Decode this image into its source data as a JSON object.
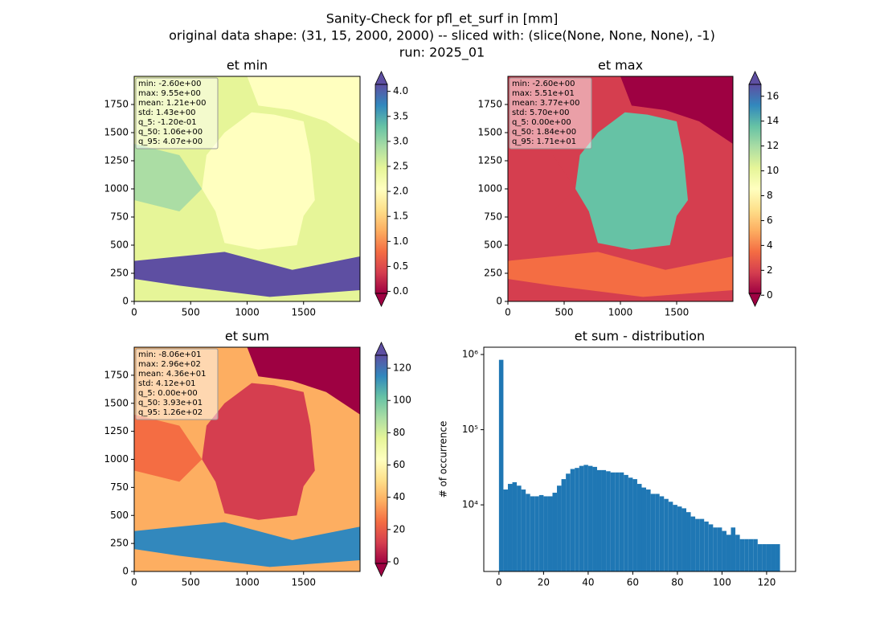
{
  "title_lines": [
    "Sanity-Check for pfl_et_surf in [mm]",
    "original data shape: (31, 15, 2000, 2000) -- sliced with: (slice(None, None, None), -1)",
    "run: 2025_01"
  ],
  "chart_data": [
    {
      "type": "heatmap",
      "title": "et min",
      "xlim": [
        0,
        2000
      ],
      "ylim": [
        0,
        2000
      ],
      "xticks": [
        0,
        500,
        1000,
        1500
      ],
      "yticks": [
        0,
        250,
        500,
        750,
        1000,
        1250,
        1500,
        1750
      ],
      "colormap": [
        "#9e0142",
        "#d53e4f",
        "#f46d43",
        "#fdae61",
        "#fee08b",
        "#ffffbf",
        "#e6f598",
        "#abdda4",
        "#66c2a5",
        "#3288bd",
        "#5e4fa2"
      ],
      "colorbar": {
        "clim": [
          -0.2,
          4.3
        ],
        "extend": "both",
        "ticks": [
          {
            "value": 0,
            "label": "0.0"
          },
          0.5,
          {
            "value": 1,
            "label": "1.0"
          },
          1.5,
          {
            "value": 2,
            "label": "2.0"
          },
          2.5,
          {
            "value": 3,
            "label": "3.0"
          },
          3.5,
          {
            "value": 4,
            "label": "4.0"
          }
        ]
      },
      "stats": [
        "min: -2.60e+00",
        "max: 9.55e+00",
        "mean: 1.21e+00",
        "std: 1.43e+00",
        "q_5: -1.20e-01",
        "q_50: 1.06e+00",
        "q_95: 4.07e+00"
      ]
    },
    {
      "type": "heatmap",
      "title": "et max",
      "xlim": [
        0,
        2000
      ],
      "ylim": [
        0,
        2000
      ],
      "xticks": [
        0,
        500,
        1000,
        1500
      ],
      "yticks": [
        0,
        250,
        500,
        750,
        1000,
        1250,
        1500,
        1750
      ],
      "colormap": [
        "#9e0142",
        "#d53e4f",
        "#f46d43",
        "#fdae61",
        "#fee08b",
        "#ffffbf",
        "#e6f598",
        "#abdda4",
        "#66c2a5",
        "#3288bd",
        "#5e4fa2"
      ],
      "colorbar": {
        "clim": [
          -0.5,
          17.6
        ],
        "extend": "both",
        "ticks": [
          0,
          2,
          4,
          6,
          8,
          10,
          12,
          14,
          16
        ]
      },
      "stats": [
        "min: -2.60e+00",
        "max: 5.51e+01",
        "mean: 3.77e+00",
        "std: 5.70e+00",
        "q_5: 0.00e+00",
        "q_50: 1.84e+00",
        "q_95: 1.71e+01"
      ]
    },
    {
      "type": "heatmap",
      "title": "et sum",
      "xlim": [
        0,
        2000
      ],
      "ylim": [
        0,
        2000
      ],
      "xticks": [
        0,
        500,
        1000,
        1500
      ],
      "yticks": [
        0,
        250,
        500,
        750,
        1000,
        1250,
        1500,
        1750
      ],
      "colormap": [
        "#9e0142",
        "#d53e4f",
        "#f46d43",
        "#fdae61",
        "#fee08b",
        "#ffffbf",
        "#e6f598",
        "#abdda4",
        "#66c2a5",
        "#3288bd",
        "#5e4fa2"
      ],
      "colorbar": {
        "clim": [
          -6,
          133
        ],
        "extend": "both",
        "ticks": [
          0,
          20,
          40,
          60,
          80,
          100,
          120
        ]
      },
      "stats": [
        "min: -8.06e+01",
        "max: 2.96e+02",
        "mean: 4.36e+01",
        "std: 4.12e+01",
        "q_5: 0.00e+00",
        "q_50: 3.93e+01",
        "q_95: 1.26e+02"
      ]
    },
    {
      "type": "histogram",
      "title": "et sum - distribution",
      "y_label": "# of occurrence",
      "color": "#1f77b4",
      "log_y": true,
      "xlim": [
        -6.8,
        133
      ],
      "ylim": [
        1300,
        1250000
      ],
      "xticks": [
        0,
        20,
        40,
        60,
        80,
        100,
        120
      ],
      "yticks": [
        {
          "value": 10000,
          "label": "10⁴"
        },
        {
          "value": 100000,
          "label": "10⁵"
        },
        {
          "value": 1000000,
          "label": "10⁶"
        }
      ],
      "bins": [
        0,
        2,
        4,
        6,
        8,
        10,
        12,
        14,
        16,
        18,
        20,
        22,
        24,
        26,
        28,
        30,
        32,
        34,
        36,
        38,
        40,
        42,
        44,
        46,
        48,
        50,
        52,
        54,
        56,
        58,
        60,
        62,
        64,
        66,
        68,
        70,
        72,
        74,
        76,
        78,
        80,
        82,
        84,
        86,
        88,
        90,
        92,
        94,
        96,
        98,
        100,
        102,
        104,
        106,
        108,
        110,
        112,
        114,
        116,
        118,
        120,
        122,
        124,
        126
      ],
      "values": [
        850000,
        16000,
        19000,
        20000,
        18000,
        16000,
        14000,
        13000,
        13000,
        13500,
        13000,
        13000,
        14500,
        18000,
        22000,
        26000,
        30000,
        31000,
        33000,
        34000,
        33000,
        32000,
        29000,
        29000,
        28000,
        27000,
        27000,
        27000,
        25000,
        23000,
        22000,
        19000,
        17000,
        16000,
        14000,
        14000,
        13000,
        12000,
        11000,
        10000,
        9500,
        9000,
        8000,
        7000,
        6500,
        6500,
        6000,
        5500,
        5000,
        5000,
        4500,
        4000,
        5000,
        4000,
        3500,
        3500,
        3500,
        3500,
        3000,
        3000,
        3000,
        3000,
        3000
      ]
    }
  ]
}
